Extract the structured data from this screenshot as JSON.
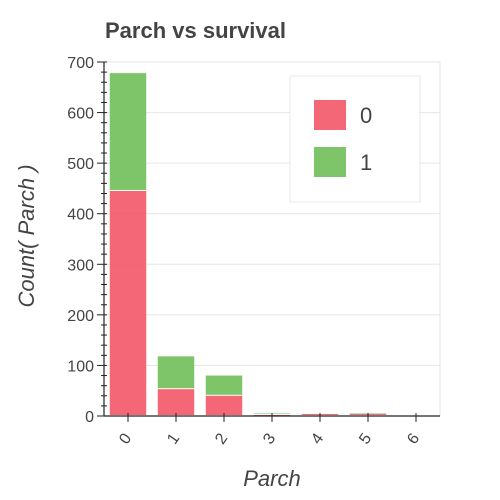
{
  "chart_data": {
    "type": "bar",
    "stacked": true,
    "title": "Parch vs survival",
    "xlabel": "Parch",
    "ylabel": "Count( Parch )",
    "categories": [
      "0",
      "1",
      "2",
      "3",
      "4",
      "5",
      "6"
    ],
    "series": [
      {
        "name": "0",
        "color": "#f25a6a",
        "values": [
          445,
          53,
          40,
          2,
          4,
          4,
          1
        ]
      },
      {
        "name": "1",
        "color": "#73c05c",
        "values": [
          233,
          65,
          40,
          3,
          0,
          1,
          0
        ]
      }
    ],
    "ylim": [
      0,
      700
    ],
    "yticks": [
      0,
      100,
      200,
      300,
      400,
      500,
      600,
      700
    ],
    "grid": true,
    "legend_position": "top-right"
  }
}
